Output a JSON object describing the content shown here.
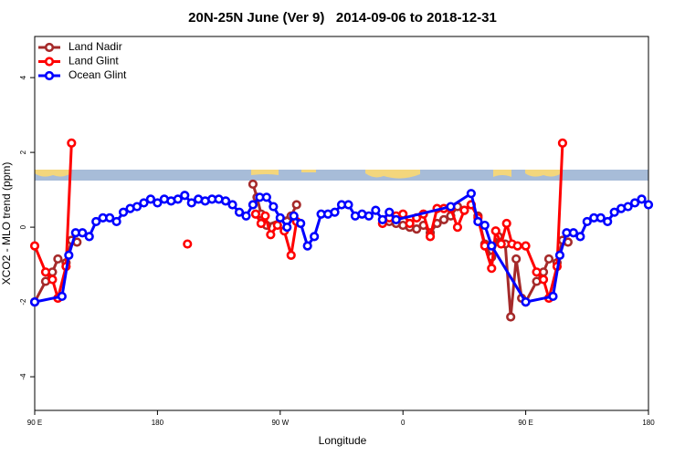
{
  "chart_data": {
    "type": "line",
    "title": "20N-25N June (Ver 9)   2014-09-06 to 2018-12-31",
    "xlabel": "Longitude",
    "ylabel": "XCO2 - MLO trend (ppm)",
    "xlim": [
      90,
      540
    ],
    "ylim": [
      -4.9,
      5.1
    ],
    "xticks": [
      {
        "value": 90,
        "label": "90 E"
      },
      180,
      {
        "value": 270,
        "label": "90 W"
      },
      {
        "value": 360,
        "label": "0"
      },
      {
        "value": 450,
        "label": "90 E"
      },
      {
        "value": 540,
        "label": "180"
      }
    ],
    "yticks": [
      -4,
      -2,
      0,
      2,
      4
    ],
    "legend": "top-left",
    "series": [
      {
        "name": "Land Nadir",
        "color": "#a52a2a",
        "x": [
          90,
          98,
          103,
          107,
          113,
          117,
          121,
          null,
          250,
          253,
          256,
          260,
          278,
          282,
          null,
          350,
          355,
          360,
          365,
          370,
          375,
          380,
          385,
          390,
          395,
          400,
          405,
          410,
          415,
          420,
          425,
          430,
          435,
          439,
          443,
          447,
          450,
          458,
          463,
          467,
          473,
          477,
          481
        ],
        "values": [
          -2.0,
          -1.45,
          -1.2,
          -0.85,
          -0.95,
          -0.35,
          -0.4,
          null,
          1.15,
          0.8,
          0.35,
          0.05,
          0.3,
          0.6,
          null,
          0.15,
          0.1,
          0.05,
          0.0,
          -0.05,
          0.05,
          -0.15,
          0.1,
          0.2,
          0.3,
          0.55,
          0.45,
          0.6,
          0.3,
          -0.45,
          -0.8,
          -0.25,
          -0.45,
          -2.4,
          -0.85,
          -1.9,
          -2.0,
          -1.45,
          -1.2,
          -0.85,
          -0.95,
          -0.35,
          -0.4
        ]
      },
      {
        "name": "Land Glint",
        "color": "#ff0000",
        "x": [
          90,
          98,
          103,
          107,
          113,
          117,
          null,
          202,
          null,
          252,
          256,
          259,
          263,
          268,
          273,
          278,
          282,
          null,
          345,
          350,
          355,
          360,
          365,
          370,
          375,
          380,
          385,
          390,
          395,
          400,
          405,
          410,
          415,
          420,
          425,
          428,
          432,
          436,
          440,
          444,
          450,
          458,
          463,
          467,
          473,
          477
        ],
        "values": [
          -0.5,
          -1.2,
          -1.4,
          -1.9,
          -1.05,
          2.25,
          null,
          -0.45,
          null,
          0.35,
          0.1,
          0.3,
          -0.2,
          0.05,
          -0.1,
          -0.75,
          0.15,
          null,
          0.1,
          0.25,
          0.3,
          0.35,
          0.1,
          0.25,
          0.35,
          -0.25,
          0.5,
          0.5,
          0.5,
          0.0,
          0.45,
          0.6,
          0.25,
          -0.5,
          -1.1,
          -0.1,
          -0.45,
          0.1,
          -0.45,
          -0.5,
          -0.5,
          -1.2,
          -1.4,
          -1.9,
          -1.05,
          2.25
        ]
      },
      {
        "name": "Ocean Glint",
        "color": "#0000ff",
        "x": [
          90,
          110,
          115,
          120,
          125,
          130,
          135,
          140,
          145,
          150,
          155,
          160,
          165,
          170,
          175,
          180,
          185,
          190,
          195,
          200,
          205,
          210,
          215,
          220,
          225,
          230,
          235,
          240,
          245,
          250,
          255,
          260,
          265,
          270,
          275,
          280,
          285,
          290,
          295,
          300,
          305,
          310,
          315,
          320,
          325,
          330,
          335,
          340,
          345,
          350,
          355,
          395,
          410,
          415,
          420,
          425,
          450,
          470,
          475,
          480,
          485,
          490,
          495,
          500,
          505,
          510,
          515,
          520,
          525,
          530,
          535,
          540
        ],
        "values": [
          -2.0,
          -1.85,
          -0.75,
          -0.15,
          -0.15,
          -0.25,
          0.15,
          0.25,
          0.25,
          0.15,
          0.4,
          0.5,
          0.55,
          0.65,
          0.75,
          0.65,
          0.75,
          0.7,
          0.75,
          0.85,
          0.65,
          0.75,
          0.7,
          0.75,
          0.75,
          0.7,
          0.6,
          0.4,
          0.3,
          0.6,
          0.8,
          0.8,
          0.55,
          0.25,
          0.0,
          0.3,
          0.1,
          -0.5,
          -0.25,
          0.35,
          0.35,
          0.4,
          0.6,
          0.6,
          0.3,
          0.35,
          0.3,
          0.45,
          0.2,
          0.4,
          0.2,
          0.55,
          0.9,
          0.15,
          0.05,
          -0.5,
          -2.0,
          -1.85,
          -0.75,
          -0.15,
          -0.15,
          -0.25,
          0.15,
          0.25,
          0.25,
          0.15,
          0.4,
          0.5,
          0.55,
          0.65,
          0.75,
          0.6
        ]
      }
    ]
  }
}
